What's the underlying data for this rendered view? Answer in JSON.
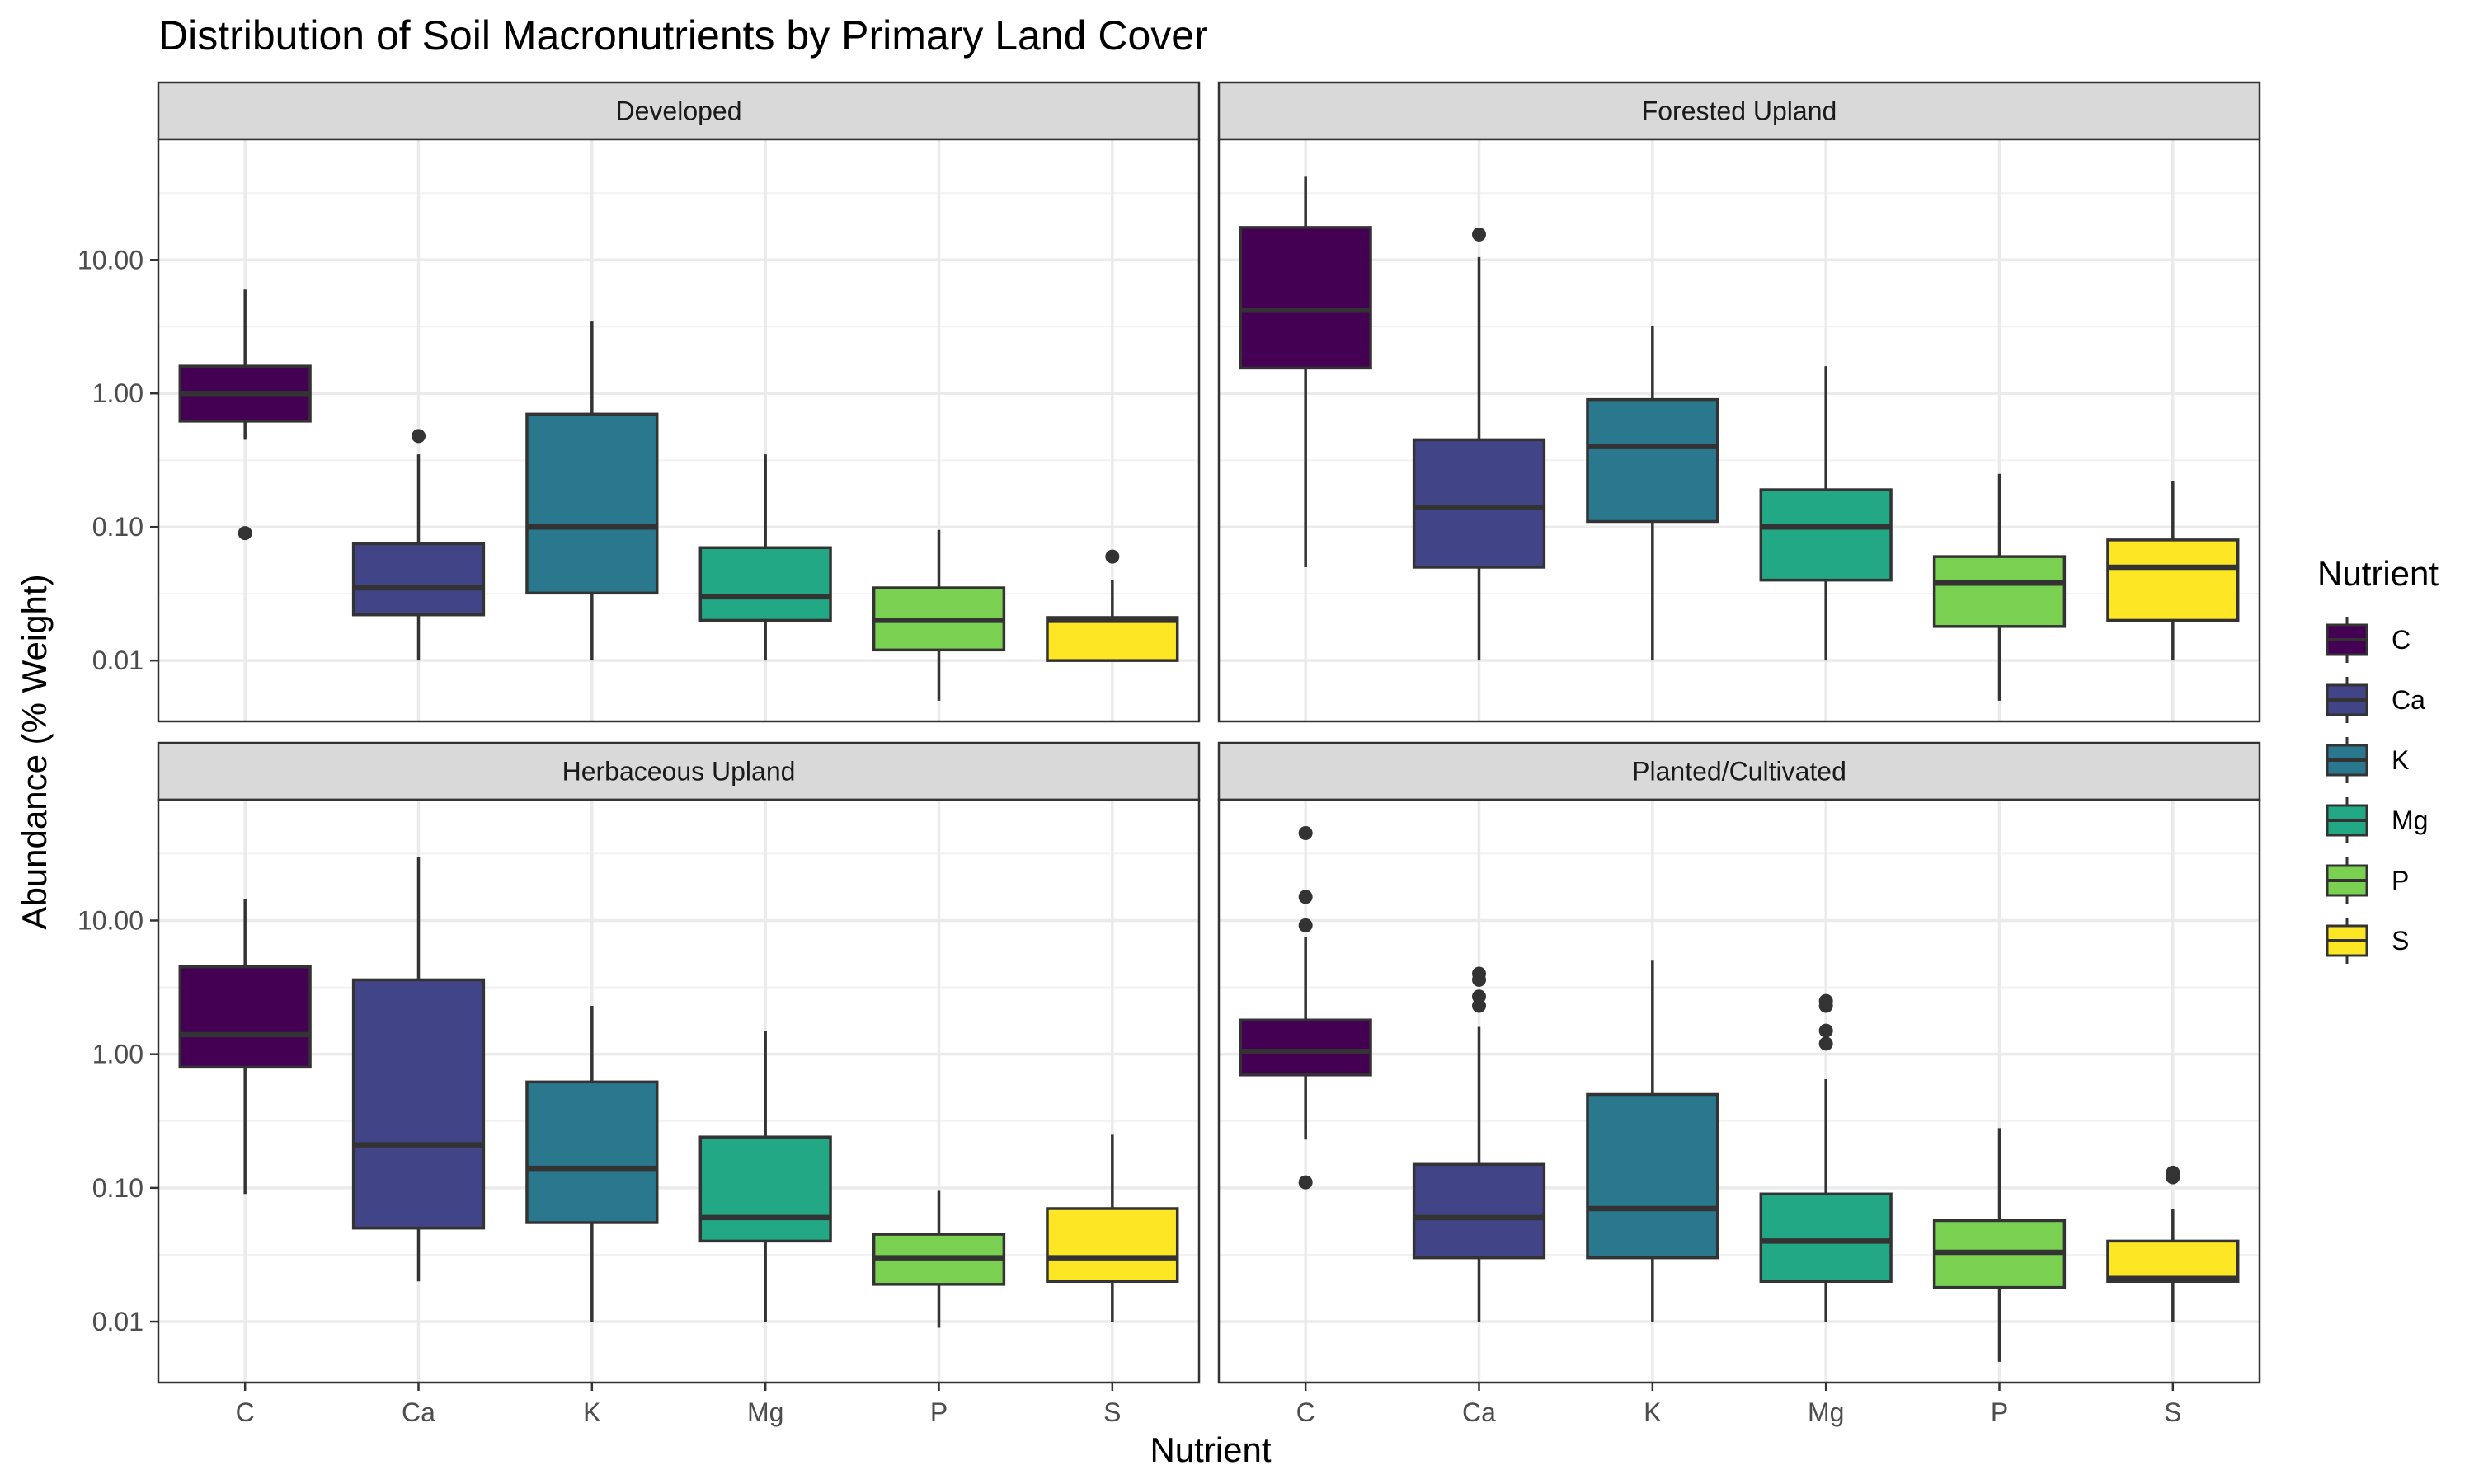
{
  "chart_data": {
    "type": "boxplot",
    "title": "Distribution of Soil Macronutrients by Primary Land Cover",
    "xlabel": "Nutrient",
    "ylabel": "Abundance (% Weight)",
    "y_scale": "log10",
    "ylim": [
      0.0035,
      80
    ],
    "y_ticks": [
      0.01,
      0.1,
      1,
      10
    ],
    "y_tick_labels": [
      "0.01",
      "0.10",
      "1.00",
      "10.00"
    ],
    "categories": [
      "C",
      "Ca",
      "K",
      "Mg",
      "P",
      "S"
    ],
    "colors": {
      "C": "#440154",
      "Ca": "#414487",
      "K": "#2a788e",
      "Mg": "#22a884",
      "P": "#7ad151",
      "S": "#fde725"
    },
    "legend": {
      "title": "Nutrient",
      "position": "right",
      "items": [
        "C",
        "Ca",
        "K",
        "Mg",
        "P",
        "S"
      ]
    },
    "grid": true,
    "panels": [
      {
        "name": "Developed",
        "boxes": [
          {
            "category": "C",
            "q1": 0.62,
            "median": 1.0,
            "q3": 1.6,
            "whisker_low": 0.45,
            "whisker_high": 6.0,
            "outliers": [
              0.09
            ]
          },
          {
            "category": "Ca",
            "q1": 0.022,
            "median": 0.035,
            "q3": 0.075,
            "whisker_low": 0.01,
            "whisker_high": 0.35,
            "outliers": [
              0.48
            ]
          },
          {
            "category": "K",
            "q1": 0.032,
            "median": 0.1,
            "q3": 0.7,
            "whisker_low": 0.01,
            "whisker_high": 3.5,
            "outliers": []
          },
          {
            "category": "Mg",
            "q1": 0.02,
            "median": 0.03,
            "q3": 0.07,
            "whisker_low": 0.01,
            "whisker_high": 0.35,
            "outliers": []
          },
          {
            "category": "P",
            "q1": 0.012,
            "median": 0.02,
            "q3": 0.035,
            "whisker_low": 0.005,
            "whisker_high": 0.095,
            "outliers": []
          },
          {
            "category": "S",
            "q1": 0.01,
            "median": 0.02,
            "q3": 0.021,
            "whisker_low": 0.01,
            "whisker_high": 0.04,
            "outliers": [
              0.06
            ]
          }
        ]
      },
      {
        "name": "Forested Upland",
        "boxes": [
          {
            "category": "C",
            "q1": 1.55,
            "median": 4.2,
            "q3": 17.5,
            "whisker_low": 0.05,
            "whisker_high": 42,
            "outliers": []
          },
          {
            "category": "Ca",
            "q1": 0.05,
            "median": 0.14,
            "q3": 0.45,
            "whisker_low": 0.01,
            "whisker_high": 10.5,
            "outliers": [
              15.5
            ]
          },
          {
            "category": "K",
            "q1": 0.11,
            "median": 0.4,
            "q3": 0.9,
            "whisker_low": 0.01,
            "whisker_high": 3.2,
            "outliers": []
          },
          {
            "category": "Mg",
            "q1": 0.04,
            "median": 0.1,
            "q3": 0.19,
            "whisker_low": 0.01,
            "whisker_high": 1.6,
            "outliers": []
          },
          {
            "category": "P",
            "q1": 0.018,
            "median": 0.038,
            "q3": 0.06,
            "whisker_low": 0.005,
            "whisker_high": 0.25,
            "outliers": []
          },
          {
            "category": "S",
            "q1": 0.02,
            "median": 0.05,
            "q3": 0.08,
            "whisker_low": 0.01,
            "whisker_high": 0.22,
            "outliers": []
          }
        ]
      },
      {
        "name": "Herbaceous Upland",
        "boxes": [
          {
            "category": "C",
            "q1": 0.8,
            "median": 1.4,
            "q3": 4.5,
            "whisker_low": 0.09,
            "whisker_high": 14.5,
            "outliers": []
          },
          {
            "category": "Ca",
            "q1": 0.05,
            "median": 0.21,
            "q3": 3.6,
            "whisker_low": 0.02,
            "whisker_high": 30,
            "outliers": []
          },
          {
            "category": "K",
            "q1": 0.055,
            "median": 0.14,
            "q3": 0.62,
            "whisker_low": 0.01,
            "whisker_high": 2.3,
            "outliers": []
          },
          {
            "category": "Mg",
            "q1": 0.04,
            "median": 0.06,
            "q3": 0.24,
            "whisker_low": 0.01,
            "whisker_high": 1.5,
            "outliers": []
          },
          {
            "category": "P",
            "q1": 0.019,
            "median": 0.03,
            "q3": 0.045,
            "whisker_low": 0.009,
            "whisker_high": 0.095,
            "outliers": []
          },
          {
            "category": "S",
            "q1": 0.02,
            "median": 0.03,
            "q3": 0.07,
            "whisker_low": 0.01,
            "whisker_high": 0.25,
            "outliers": []
          }
        ]
      },
      {
        "name": "Planted/Cultivated",
        "boxes": [
          {
            "category": "C",
            "q1": 0.7,
            "median": 1.05,
            "q3": 1.8,
            "whisker_low": 0.23,
            "whisker_high": 7.5,
            "outliers": [
              45,
              15,
              9.2,
              0.11
            ]
          },
          {
            "category": "Ca",
            "q1": 0.03,
            "median": 0.06,
            "q3": 0.15,
            "whisker_low": 0.01,
            "whisker_high": 1.6,
            "outliers": [
              4.0,
              3.6,
              2.7,
              2.3
            ]
          },
          {
            "category": "K",
            "q1": 0.03,
            "median": 0.07,
            "q3": 0.5,
            "whisker_low": 0.01,
            "whisker_high": 5.0,
            "outliers": []
          },
          {
            "category": "Mg",
            "q1": 0.02,
            "median": 0.04,
            "q3": 0.09,
            "whisker_low": 0.01,
            "whisker_high": 0.65,
            "outliers": [
              2.5,
              2.3,
              1.5,
              1.2
            ]
          },
          {
            "category": "P",
            "q1": 0.018,
            "median": 0.033,
            "q3": 0.057,
            "whisker_low": 0.005,
            "whisker_high": 0.28,
            "outliers": []
          },
          {
            "category": "S",
            "q1": 0.02,
            "median": 0.021,
            "q3": 0.04,
            "whisker_low": 0.01,
            "whisker_high": 0.07,
            "outliers": [
              0.13,
              0.12
            ]
          }
        ]
      }
    ]
  }
}
